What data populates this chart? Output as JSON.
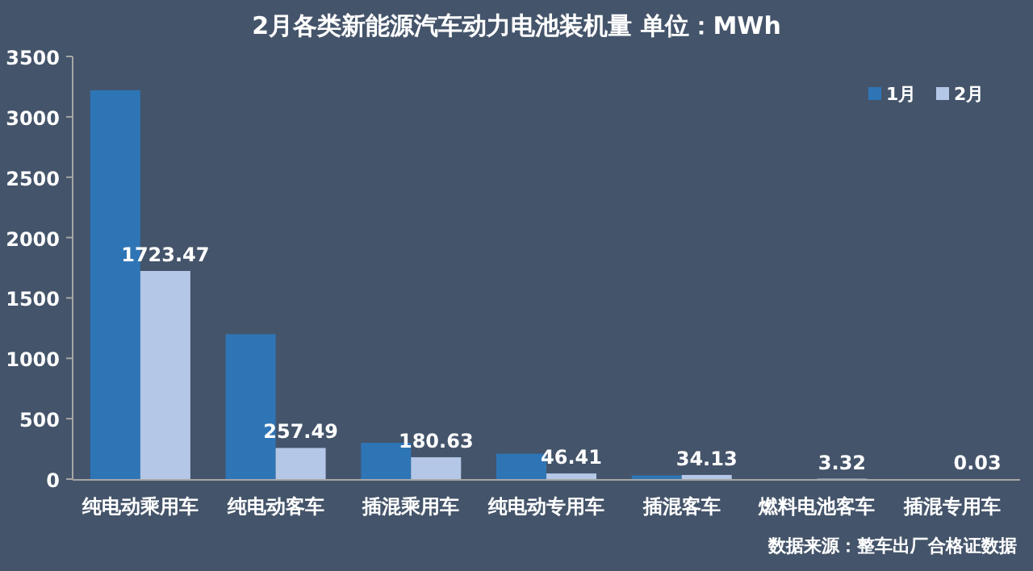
{
  "chart_data": {
    "type": "bar",
    "title": "2月各类新能源汽车动力电池装机量  单位：MWh",
    "categories": [
      "纯电动乘用车",
      "纯电动客车",
      "插混乘用车",
      "纯电动专用车",
      "插混客车",
      "燃料电池客车",
      "插混专用车"
    ],
    "series": [
      {
        "name": "1月",
        "color": "#2e75b6",
        "values": [
          3220,
          1200,
          300,
          210,
          30,
          0,
          0
        ]
      },
      {
        "name": "2月",
        "color": "#b4c7e7",
        "values": [
          1723.47,
          257.49,
          180.63,
          46.41,
          34.13,
          3.32,
          0.03
        ],
        "value_labels": [
          "1723.47",
          "257.49",
          "180.63",
          "46.41",
          "34.13",
          "3.32",
          "0.03"
        ]
      }
    ],
    "ylim": [
      0,
      3500
    ],
    "yticks": [
      0,
      500,
      1000,
      1500,
      2000,
      2500,
      3000,
      3500
    ],
    "grid": false,
    "legend": "top right",
    "annotations": [
      "数据来源：整车出厂合格证数据"
    ]
  }
}
